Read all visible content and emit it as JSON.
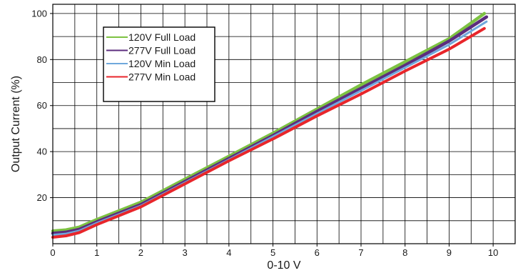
{
  "chart_data": {
    "type": "line",
    "title": "",
    "xlabel": "0-10 V",
    "ylabel": "Output Current (%)",
    "xlim": [
      0,
      10.5
    ],
    "ylim": [
      0,
      104
    ],
    "x_ticks": [
      0,
      1,
      2,
      3,
      4,
      5,
      6,
      7,
      8,
      9,
      10
    ],
    "y_ticks": [
      20,
      40,
      60,
      80,
      100
    ],
    "grid": true,
    "legend_position": "top-left",
    "series": [
      {
        "name": "120V Full Load",
        "color": "#7dc242",
        "width": 4.5,
        "x": [
          0,
          0.3,
          0.6,
          1.0,
          2,
          3,
          4,
          5,
          6,
          7,
          8,
          9,
          9.8
        ],
        "y": [
          5.5,
          6.0,
          7.2,
          10.5,
          18,
          28,
          38,
          48,
          58.5,
          69,
          79,
          89,
          100
        ]
      },
      {
        "name": "277V Full Load",
        "color": "#5c2d7e",
        "width": 4.5,
        "x": [
          0,
          0.3,
          0.6,
          1.0,
          2,
          3,
          4,
          5,
          6,
          7,
          8,
          9,
          9.85
        ],
        "y": [
          4.5,
          5.0,
          6.2,
          9.5,
          17,
          27,
          37,
          47,
          57.5,
          67.5,
          77.5,
          88,
          98.5
        ]
      },
      {
        "name": "120V Min Load",
        "color": "#6fa8dc",
        "width": 3,
        "x": [
          0,
          0.3,
          0.6,
          1.0,
          2,
          3,
          4,
          5,
          6,
          7,
          8,
          9,
          9.85
        ],
        "y": [
          3.8,
          4.3,
          5.6,
          9.0,
          16.5,
          26.5,
          36.5,
          46.5,
          56.5,
          66.5,
          76.5,
          86.5,
          96.5
        ]
      },
      {
        "name": "277V Min Load",
        "color": "#e8262b",
        "width": 4,
        "x": [
          0,
          0.3,
          0.6,
          1.0,
          2,
          3,
          4,
          5,
          6,
          7,
          8,
          9,
          9.8
        ],
        "y": [
          2.8,
          3.4,
          4.8,
          8.3,
          16,
          26,
          36,
          45.5,
          55.5,
          65,
          75,
          84.5,
          93.5
        ]
      }
    ]
  }
}
